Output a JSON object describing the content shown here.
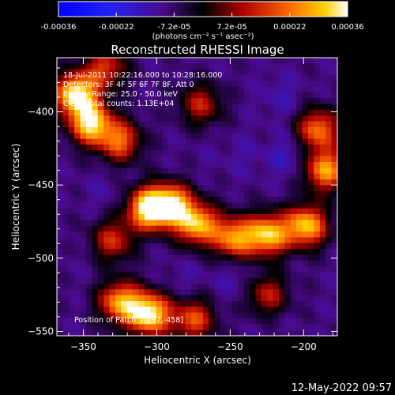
{
  "chart_data": {
    "type": "heatmap",
    "title": "Reconstructed RHESSI Image",
    "xlabel": "Heliocentric X (arcsec)",
    "ylabel": "Heliocentric Y (arcsec)",
    "xlim": [
      -368,
      -177
    ],
    "ylim": [
      -553,
      -363
    ],
    "xticks": [
      -350,
      -300,
      -250,
      -200
    ],
    "yticks": [
      -400,
      -450,
      -500,
      -550
    ],
    "colorbar": {
      "ticks": [
        "-0.00036",
        "-0.00022",
        "-7.2e-05",
        "7.2e-05",
        "0.00022",
        "0.00036"
      ],
      "label": "(photons cm⁻² s⁻¹ asec⁻²)",
      "range": [
        -0.00036,
        0.00036
      ]
    },
    "annotations": [
      "18-Jul-2011 10:22:16.000 to 10:28:16.000",
      "Detectors: 3F 4F 5F 6F 7F 8F, Att 0",
      "Energy Range: 25.0 - 50.0 keV",
      "Clean    Total counts: 1.13E+04"
    ],
    "position_note": "Position of Patch: [-297,-458]",
    "timestamp": "12-May-2022 09:57",
    "features": [
      {
        "x": -355,
        "y": -388,
        "value": 0.00036
      },
      {
        "x": -345,
        "y": -408,
        "value": 0.00032
      },
      {
        "x": -325,
        "y": -420,
        "value": 0.0002
      },
      {
        "x": -306,
        "y": -466,
        "value": 0.00034
      },
      {
        "x": -290,
        "y": -464,
        "value": 0.00033
      },
      {
        "x": -272,
        "y": -477,
        "value": 0.00028
      },
      {
        "x": -247,
        "y": -486,
        "value": 0.00025
      },
      {
        "x": -224,
        "y": -484,
        "value": 0.0003
      },
      {
        "x": -198,
        "y": -478,
        "value": 0.0003
      },
      {
        "x": -185,
        "y": -440,
        "value": 0.00026
      },
      {
        "x": -190,
        "y": -412,
        "value": 0.00022
      },
      {
        "x": -305,
        "y": -538,
        "value": 0.00036
      },
      {
        "x": -325,
        "y": -530,
        "value": 0.00026
      },
      {
        "x": -275,
        "y": -542,
        "value": 0.00018
      },
      {
        "x": -330,
        "y": -488,
        "value": 0.00014
      },
      {
        "x": -270,
        "y": -395,
        "value": 0.00012
      },
      {
        "x": -225,
        "y": -525,
        "value": 0.00012
      },
      {
        "x": -335,
        "y": -370,
        "value": 0.00015
      },
      {
        "x": -240,
        "y": -430,
        "value": -0.00012
      },
      {
        "x": -265,
        "y": -430,
        "value": -0.0001
      },
      {
        "x": -335,
        "y": -455,
        "value": -0.00012
      },
      {
        "x": -215,
        "y": -390,
        "value": -0.00014
      },
      {
        "x": -210,
        "y": -430,
        "value": -0.00016
      },
      {
        "x": -280,
        "y": -515,
        "value": -0.00012
      },
      {
        "x": -245,
        "y": -515,
        "value": -0.00014
      },
      {
        "x": -355,
        "y": -500,
        "value": -0.0001
      },
      {
        "x": -220,
        "y": -548,
        "value": -0.0001
      }
    ]
  }
}
